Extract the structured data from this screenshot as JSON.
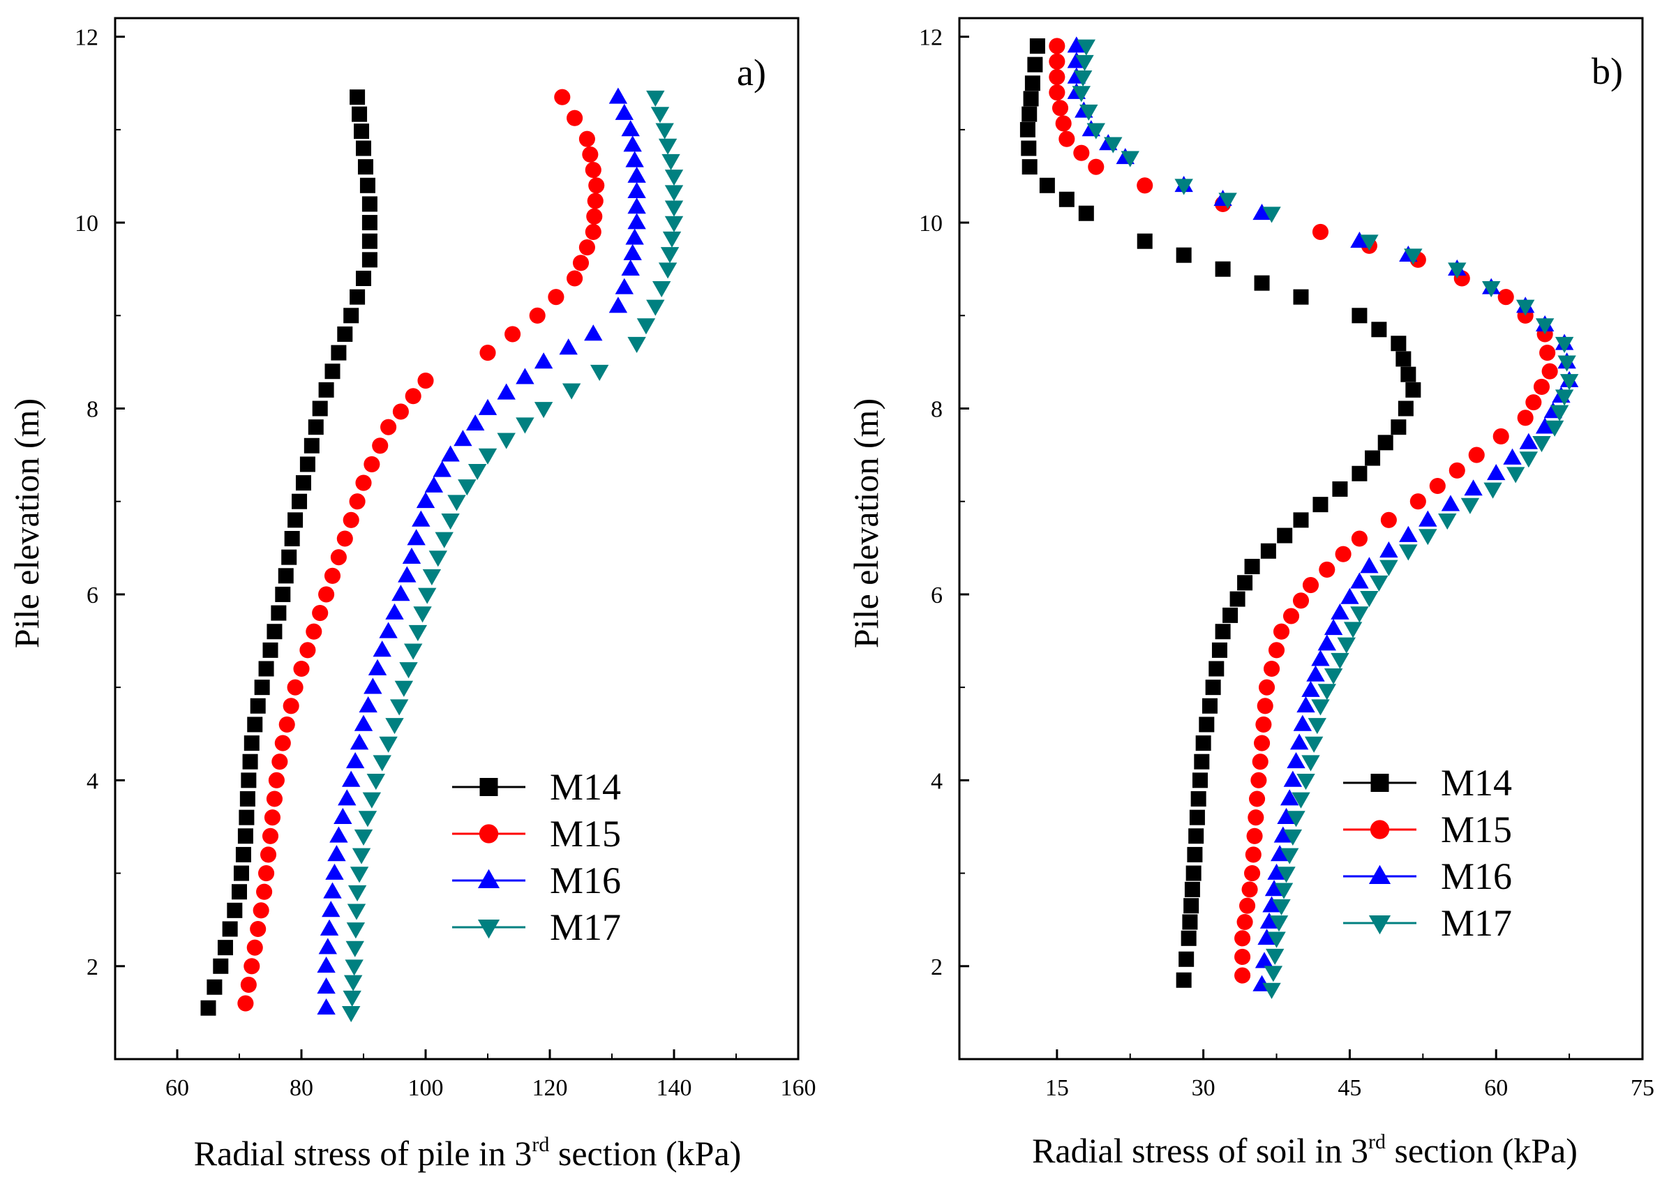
{
  "chart_data": [
    {
      "type": "scatter",
      "panel_label": "a)",
      "title": "",
      "xlabel_parts": [
        "Radial stress of pile in 3",
        "rd",
        " section (kPa)"
      ],
      "ylabel": "Pile elevation (m)",
      "xlim": [
        50,
        160
      ],
      "ylim": [
        1,
        12.2
      ],
      "xticks": [
        60,
        80,
        100,
        120,
        140,
        160
      ],
      "yticks": [
        2,
        4,
        6,
        8,
        10,
        12
      ],
      "grid": false,
      "legend_position": "bottom-right",
      "series": [
        {
          "name": "M14",
          "color": "#000000",
          "marker": "square",
          "x": [
            89,
            90,
            91,
            91,
            89,
            86,
            83,
            81,
            79,
            77,
            75,
            73,
            72,
            71.5,
            71,
            70,
            67,
            65
          ],
          "y": [
            11.35,
            10.8,
            10.2,
            9.6,
            9.2,
            8.6,
            8.0,
            7.4,
            6.8,
            6.0,
            5.4,
            4.8,
            4.4,
            4.0,
            3.4,
            2.8,
            2.0,
            1.55
          ]
        },
        {
          "name": "M15",
          "color": "#ff0000",
          "marker": "circle",
          "x": [
            122,
            126,
            127.5,
            127,
            124,
            118,
            110,
            100,
            94,
            90,
            87,
            83,
            79,
            77,
            76,
            75,
            74,
            72,
            71
          ],
          "y": [
            11.35,
            10.9,
            10.4,
            9.9,
            9.4,
            9.0,
            8.6,
            8.3,
            7.8,
            7.2,
            6.6,
            5.8,
            5.0,
            4.4,
            4.0,
            3.4,
            2.8,
            2.0,
            1.6
          ]
        },
        {
          "name": "M16",
          "color": "#0000ff",
          "marker": "triangle-up",
          "x": [
            131,
            133,
            134,
            134,
            133,
            131,
            127,
            119,
            110,
            104,
            100,
            97,
            93,
            90,
            88,
            86,
            85,
            84,
            84
          ],
          "y": [
            11.35,
            11.0,
            10.5,
            10.0,
            9.5,
            9.1,
            8.8,
            8.5,
            8.0,
            7.5,
            7.0,
            6.2,
            5.4,
            4.6,
            4.0,
            3.4,
            2.8,
            2.0,
            1.55
          ]
        },
        {
          "name": "M17",
          "color": "#008080",
          "marker": "triangle-down",
          "x": [
            137,
            138.5,
            140,
            140,
            139,
            137,
            134,
            128,
            119,
            110,
            105,
            101,
            98,
            95,
            92,
            90,
            89,
            88.5,
            88
          ],
          "y": [
            11.35,
            11.0,
            10.5,
            10.0,
            9.5,
            9.1,
            8.7,
            8.4,
            8.0,
            7.5,
            7.0,
            6.2,
            5.4,
            4.6,
            4.0,
            3.4,
            2.8,
            2.0,
            1.5
          ]
        }
      ]
    },
    {
      "type": "scatter",
      "panel_label": "b)",
      "title": "",
      "xlabel_parts": [
        "Radial stress of soil in 3",
        "rd",
        " section (kPa)"
      ],
      "ylabel": "Pile elevation (m)",
      "xlim": [
        5,
        75
      ],
      "ylim": [
        1,
        12.2
      ],
      "xticks": [
        15,
        30,
        45,
        60,
        75
      ],
      "yticks": [
        2,
        4,
        6,
        8,
        10,
        12
      ],
      "grid": false,
      "legend_position": "bottom-right",
      "series": [
        {
          "name": "M14",
          "color": "#000000",
          "marker": "square",
          "x": [
            13,
            12.5,
            12.0,
            12.2,
            14,
            18,
            24,
            32,
            40,
            46,
            50,
            51.5,
            50,
            46,
            40,
            35,
            32,
            31,
            30,
            29.5,
            29,
            28.5,
            28
          ],
          "y": [
            11.9,
            11.5,
            11.0,
            10.6,
            10.4,
            10.1,
            9.8,
            9.5,
            9.2,
            9.0,
            8.7,
            8.2,
            7.8,
            7.3,
            6.8,
            6.3,
            5.6,
            5.0,
            4.4,
            3.8,
            3.0,
            2.3,
            1.85
          ]
        },
        {
          "name": "M15",
          "color": "#ff0000",
          "marker": "circle",
          "x": [
            15,
            15,
            16,
            19,
            24,
            32,
            42,
            52,
            61,
            65,
            65.5,
            63,
            58,
            52,
            46,
            41,
            38,
            36.5,
            36,
            35.5,
            35,
            34,
            34
          ],
          "y": [
            11.9,
            11.4,
            10.9,
            10.6,
            10.4,
            10.2,
            9.9,
            9.6,
            9.2,
            8.8,
            8.4,
            7.9,
            7.5,
            7.0,
            6.6,
            6.1,
            5.6,
            5.0,
            4.4,
            3.8,
            3.0,
            2.3,
            1.9
          ]
        },
        {
          "name": "M16",
          "color": "#0000ff",
          "marker": "triangle-up",
          "x": [
            17,
            17,
            18.5,
            22,
            28,
            36,
            46,
            56,
            63,
            67,
            67.5,
            65,
            60,
            53,
            47,
            44,
            42,
            40.5,
            39.5,
            38.5,
            37.5,
            36.5,
            36
          ],
          "y": [
            11.9,
            11.4,
            11.0,
            10.7,
            10.4,
            10.1,
            9.8,
            9.5,
            9.1,
            8.7,
            8.3,
            7.8,
            7.3,
            6.8,
            6.3,
            5.8,
            5.3,
            4.8,
            4.2,
            3.6,
            3.0,
            2.3,
            1.8
          ]
        },
        {
          "name": "M17",
          "color": "#008080",
          "marker": "triangle-down",
          "x": [
            18,
            17.5,
            19,
            22.5,
            28,
            37,
            47,
            56,
            63,
            67,
            67.5,
            66,
            62,
            55,
            49,
            46,
            44,
            42,
            41,
            39.5,
            38.5,
            37.5,
            37
          ],
          "y": [
            11.9,
            11.4,
            11.0,
            10.7,
            10.4,
            10.1,
            9.8,
            9.5,
            9.1,
            8.7,
            8.3,
            7.8,
            7.3,
            6.8,
            6.3,
            5.8,
            5.3,
            4.8,
            4.2,
            3.6,
            3.0,
            2.3,
            1.75
          ]
        }
      ]
    }
  ]
}
